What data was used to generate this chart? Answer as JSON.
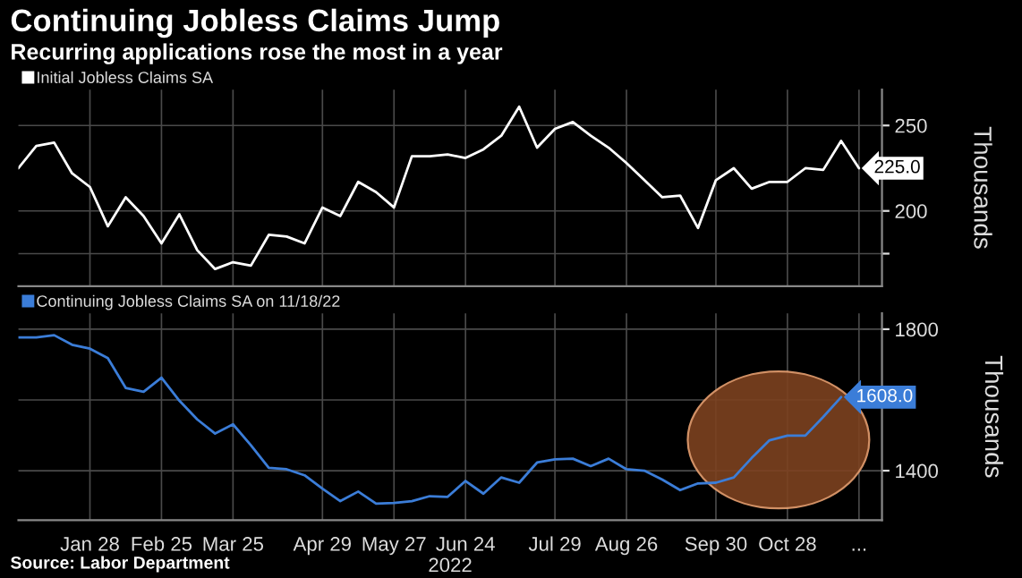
{
  "chart_data": [
    {
      "type": "line",
      "title": "Continuing Jobless Claims Jump",
      "subtitle": "Recurring applications rose the most in a year",
      "legend": "top left",
      "grid": true,
      "tick_labels": "y",
      "ylabel": "Thousands",
      "xlim": [
        "2021-12-31",
        "2022-12-04"
      ],
      "ylim": [
        156,
        271
      ],
      "xticks": [
        {
          "value": "2022-01-28",
          "label": null
        },
        {
          "value": "2022-02-25",
          "label": null
        },
        {
          "value": "2022-03-25",
          "label": null
        },
        {
          "value": "2022-04-29",
          "label": null
        },
        {
          "value": "2022-05-27",
          "label": null
        },
        {
          "value": "2022-06-24",
          "label": null
        },
        {
          "value": "2022-07-29",
          "label": null
        },
        {
          "value": "2022-08-26",
          "label": null
        },
        {
          "value": "2022-09-30",
          "label": null
        },
        {
          "value": "2022-10-28",
          "label": null
        },
        {
          "value": "2022-11-25",
          "label": null
        }
      ],
      "yticks": [
        {
          "value": 175,
          "label": null
        },
        200,
        250
      ],
      "x": [
        "2021-12-31",
        "2022-01-07",
        "2022-01-14",
        "2022-01-21",
        "2022-01-28",
        "2022-02-04",
        "2022-02-11",
        "2022-02-18",
        "2022-02-25",
        "2022-03-04",
        "2022-03-11",
        "2022-03-18",
        "2022-03-25",
        "2022-04-01",
        "2022-04-08",
        "2022-04-15",
        "2022-04-22",
        "2022-04-29",
        "2022-05-06",
        "2022-05-13",
        "2022-05-20",
        "2022-05-27",
        "2022-06-03",
        "2022-06-10",
        "2022-06-17",
        "2022-06-24",
        "2022-07-01",
        "2022-07-08",
        "2022-07-15",
        "2022-07-22",
        "2022-07-29",
        "2022-08-05",
        "2022-08-12",
        "2022-08-19",
        "2022-08-26",
        "2022-09-02",
        "2022-09-09",
        "2022-09-16",
        "2022-09-23",
        "2022-09-30",
        "2022-10-07",
        "2022-10-14",
        "2022-10-21",
        "2022-10-28",
        "2022-11-04",
        "2022-11-11",
        "2022-11-18",
        "2022-11-25"
      ],
      "series": [
        {
          "name": "Initial Jobless Claims SA",
          "color": "#ffffff",
          "values": [
            225,
            238,
            240,
            222,
            214,
            191,
            208,
            197,
            181,
            198,
            177,
            166,
            170,
            168,
            186,
            185,
            181,
            202,
            197,
            217,
            211,
            202,
            232,
            232,
            233,
            231,
            236,
            244,
            261,
            237,
            248,
            252,
            244,
            237,
            228,
            218,
            208,
            209,
            190,
            218,
            225,
            213,
            217,
            217,
            225,
            224,
            241,
            225
          ],
          "value_labels": [
            null,
            null,
            null,
            null,
            null,
            null,
            null,
            null,
            null,
            null,
            null,
            null,
            null,
            null,
            null,
            null,
            null,
            null,
            null,
            null,
            null,
            null,
            null,
            null,
            null,
            null,
            null,
            null,
            null,
            null,
            null,
            null,
            null,
            null,
            null,
            null,
            null,
            null,
            null,
            null,
            null,
            null,
            null,
            null,
            null,
            null,
            null,
            "225.0"
          ]
        }
      ]
    },
    {
      "type": "line",
      "legend": "top left",
      "grid": true,
      "ylabel": "Thousands",
      "xlabel": "2022",
      "xlim": [
        "2021-12-31",
        "2022-12-04"
      ],
      "ylim": [
        1260,
        1845
      ],
      "xticks": [
        {
          "value": "2022-01-28",
          "label": "Jan 28"
        },
        {
          "value": "2022-02-25",
          "label": "Feb 25"
        },
        {
          "value": "2022-03-25",
          "label": "Mar 25"
        },
        {
          "value": "2022-04-29",
          "label": "Apr 29"
        },
        {
          "value": "2022-05-27",
          "label": "May 27"
        },
        {
          "value": "2022-06-24",
          "label": "Jun 24"
        },
        {
          "value": "2022-07-29",
          "label": "Jul 29"
        },
        {
          "value": "2022-08-26",
          "label": "Aug 26"
        },
        {
          "value": "2022-09-30",
          "label": "Sep 30"
        },
        {
          "value": "2022-10-28",
          "label": "Oct 28"
        },
        {
          "value": "2022-11-25",
          "label": "..."
        }
      ],
      "yticks": [
        1400,
        {
          "value": 1600,
          "label": null
        },
        1800
      ],
      "annotations": [
        "Source: Labor Department"
      ],
      "x": [
        "2021-12-31",
        "2022-01-07",
        "2022-01-14",
        "2022-01-21",
        "2022-01-28",
        "2022-02-04",
        "2022-02-11",
        "2022-02-18",
        "2022-02-25",
        "2022-03-04",
        "2022-03-11",
        "2022-03-18",
        "2022-03-25",
        "2022-04-01",
        "2022-04-08",
        "2022-04-15",
        "2022-04-22",
        "2022-04-29",
        "2022-05-06",
        "2022-05-13",
        "2022-05-20",
        "2022-05-27",
        "2022-06-03",
        "2022-06-10",
        "2022-06-17",
        "2022-06-24",
        "2022-07-01",
        "2022-07-08",
        "2022-07-15",
        "2022-07-22",
        "2022-07-29",
        "2022-08-05",
        "2022-08-12",
        "2022-08-19",
        "2022-08-26",
        "2022-09-02",
        "2022-09-09",
        "2022-09-16",
        "2022-09-23",
        "2022-09-30",
        "2022-10-07",
        "2022-10-14",
        "2022-10-21",
        "2022-10-28",
        "2022-11-04",
        "2022-11-11",
        "2022-11-18"
      ],
      "series": [
        {
          "name": "Continuing Jobless Claims SA on 11/18/22",
          "color": "#3b7dd8",
          "values": [
            1777,
            1777,
            1783,
            1756,
            1745,
            1718,
            1634,
            1623,
            1663,
            1598,
            1545,
            1505,
            1531,
            1472,
            1408,
            1404,
            1387,
            1349,
            1314,
            1341,
            1307,
            1309,
            1314,
            1328,
            1326,
            1371,
            1335,
            1381,
            1366,
            1423,
            1432,
            1434,
            1413,
            1434,
            1404,
            1400,
            1375,
            1345,
            1364,
            1366,
            1381,
            1436,
            1486,
            1499,
            1499,
            1552,
            1608
          ],
          "value_labels": [
            null,
            null,
            null,
            null,
            null,
            null,
            null,
            null,
            null,
            null,
            null,
            null,
            null,
            null,
            null,
            null,
            null,
            null,
            null,
            null,
            null,
            null,
            null,
            null,
            null,
            null,
            null,
            null,
            null,
            null,
            null,
            null,
            null,
            null,
            null,
            null,
            null,
            null,
            null,
            null,
            null,
            null,
            null,
            null,
            null,
            null,
            "1608.0"
          ]
        }
      ]
    }
  ]
}
